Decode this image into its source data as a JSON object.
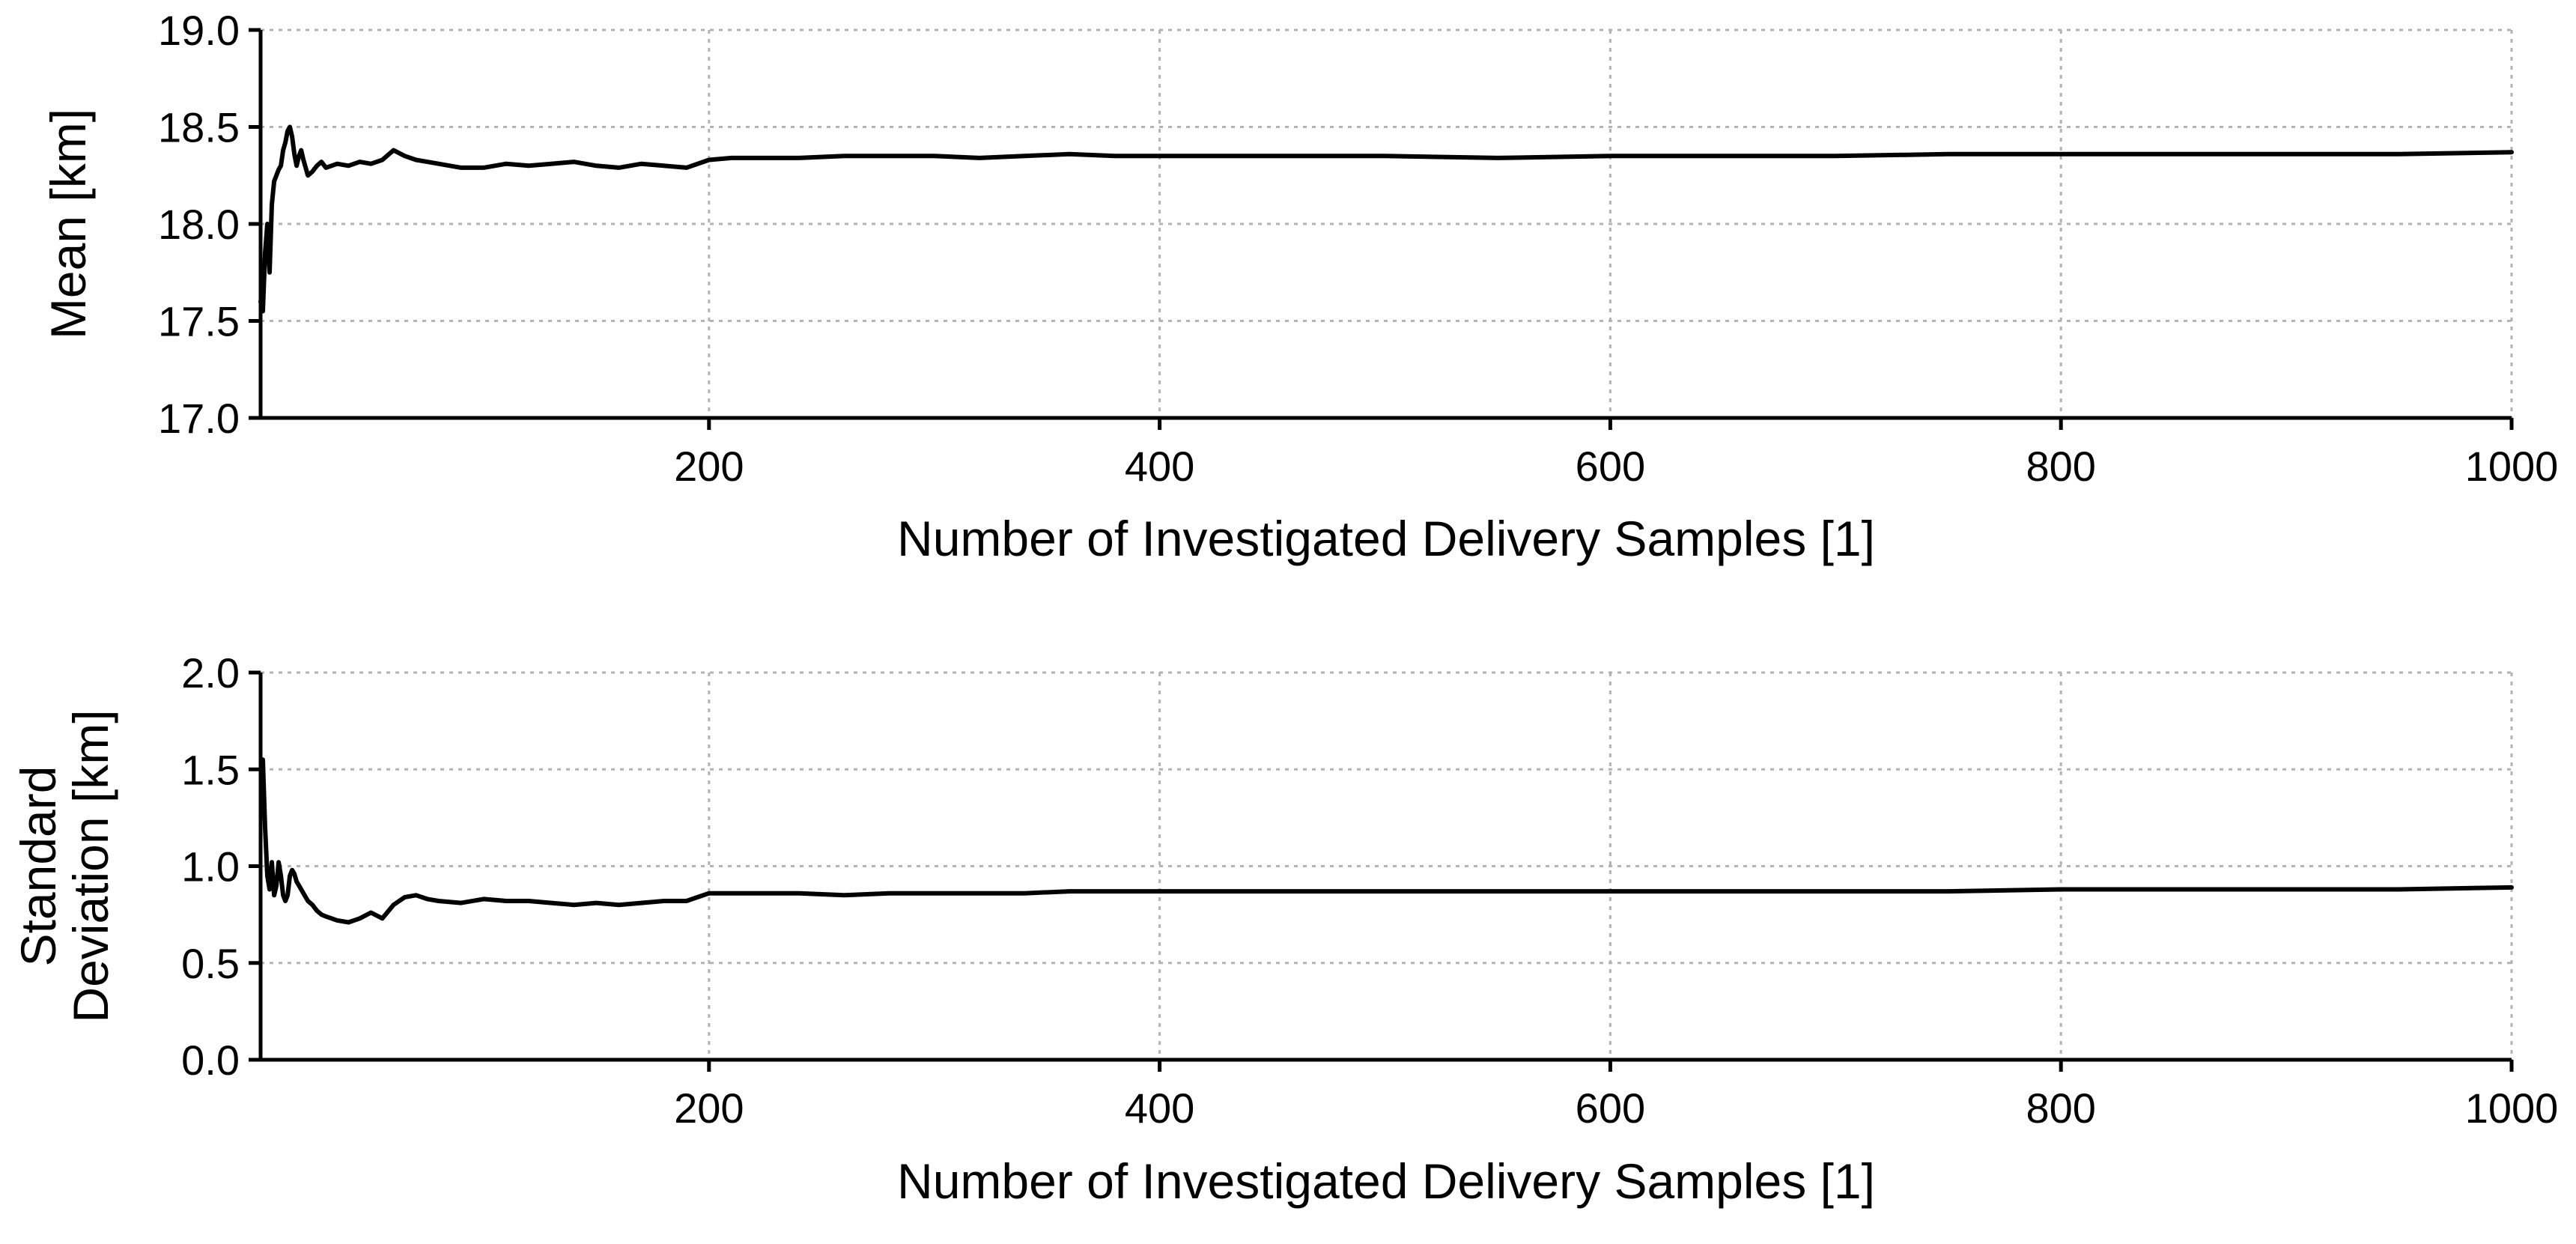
{
  "chart_data": [
    {
      "type": "line",
      "xlabel": "Number of Investigated Delivery Samples [1]",
      "ylabel": "Mean [km]",
      "xlim": [
        1,
        1000
      ],
      "ylim": [
        17.0,
        19.0
      ],
      "x_ticks": [
        200,
        400,
        600,
        800,
        1000
      ],
      "y_ticks": [
        "17.0",
        "17.5",
        "18.0",
        "18.5",
        "19.0"
      ],
      "grid": true,
      "series": [
        {
          "color": "#000000",
          "x": [
            1,
            2,
            3,
            4,
            5,
            6,
            7,
            8,
            9,
            10,
            11,
            12,
            13,
            14,
            15,
            16,
            17,
            18,
            19,
            20,
            22,
            24,
            26,
            28,
            30,
            35,
            40,
            45,
            50,
            55,
            60,
            65,
            70,
            75,
            80,
            90,
            100,
            110,
            120,
            130,
            140,
            150,
            160,
            170,
            180,
            190,
            200,
            210,
            220,
            240,
            260,
            280,
            300,
            320,
            340,
            360,
            380,
            400,
            420,
            450,
            500,
            550,
            600,
            650,
            700,
            750,
            800,
            850,
            900,
            950,
            1000
          ],
          "y": [
            17.6,
            17.55,
            17.85,
            18.0,
            17.75,
            18.1,
            18.22,
            18.25,
            18.28,
            18.3,
            18.38,
            18.42,
            18.48,
            18.5,
            18.45,
            18.36,
            18.3,
            18.35,
            18.38,
            18.33,
            18.25,
            18.27,
            18.3,
            18.32,
            18.29,
            18.31,
            18.3,
            18.32,
            18.31,
            18.33,
            18.38,
            18.35,
            18.33,
            18.32,
            18.31,
            18.29,
            18.29,
            18.31,
            18.3,
            18.31,
            18.32,
            18.3,
            18.29,
            18.31,
            18.3,
            18.29,
            18.33,
            18.34,
            18.34,
            18.34,
            18.35,
            18.35,
            18.35,
            18.34,
            18.35,
            18.36,
            18.35,
            18.35,
            18.35,
            18.35,
            18.35,
            18.34,
            18.35,
            18.35,
            18.35,
            18.36,
            18.36,
            18.36,
            18.36,
            18.36,
            18.37
          ]
        }
      ]
    },
    {
      "type": "line",
      "xlabel": "Number of Investigated Delivery Samples [1]",
      "ylabel_lines": [
        "Standard",
        "Deviation [km]"
      ],
      "xlim": [
        1,
        1000
      ],
      "ylim": [
        0.0,
        2.0
      ],
      "x_ticks": [
        200,
        400,
        600,
        800,
        1000
      ],
      "y_ticks": [
        "0.0",
        "0.5",
        "1.0",
        "1.5",
        "2.0"
      ],
      "grid": true,
      "series": [
        {
          "color": "#000000",
          "x": [
            2,
            3,
            4,
            5,
            6,
            7,
            8,
            9,
            10,
            11,
            12,
            13,
            14,
            15,
            16,
            17,
            18,
            19,
            20,
            22,
            24,
            26,
            28,
            30,
            35,
            40,
            45,
            50,
            55,
            60,
            65,
            70,
            75,
            80,
            90,
            100,
            110,
            120,
            130,
            140,
            150,
            160,
            170,
            180,
            190,
            200,
            210,
            220,
            240,
            260,
            280,
            300,
            320,
            340,
            360,
            380,
            400,
            420,
            450,
            500,
            550,
            600,
            650,
            700,
            750,
            800,
            850,
            900,
            950,
            1000
          ],
          "y": [
            1.55,
            1.2,
            0.95,
            0.88,
            1.02,
            0.85,
            0.9,
            1.02,
            0.95,
            0.85,
            0.82,
            0.85,
            0.95,
            0.98,
            0.96,
            0.92,
            0.9,
            0.88,
            0.86,
            0.82,
            0.8,
            0.77,
            0.75,
            0.74,
            0.72,
            0.71,
            0.73,
            0.76,
            0.73,
            0.8,
            0.84,
            0.85,
            0.83,
            0.82,
            0.81,
            0.83,
            0.82,
            0.82,
            0.81,
            0.8,
            0.81,
            0.8,
            0.81,
            0.82,
            0.82,
            0.86,
            0.86,
            0.86,
            0.86,
            0.85,
            0.86,
            0.86,
            0.86,
            0.86,
            0.87,
            0.87,
            0.87,
            0.87,
            0.87,
            0.87,
            0.87,
            0.87,
            0.87,
            0.87,
            0.87,
            0.88,
            0.88,
            0.88,
            0.88,
            0.89
          ]
        }
      ]
    }
  ]
}
